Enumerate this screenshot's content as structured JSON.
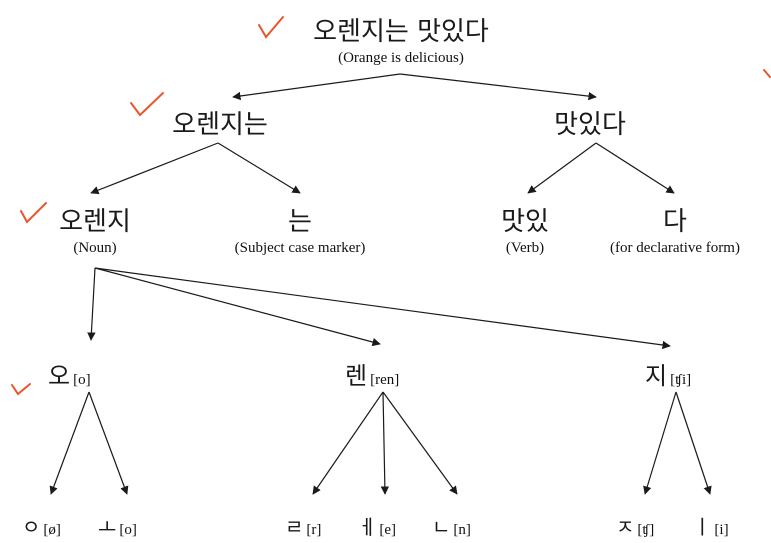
{
  "colors": {
    "ink": "#1a1a1a",
    "check": "#e8562a"
  },
  "tree": {
    "root": {
      "text": "오렌지는 맛있다",
      "gloss": "(Orange is delicious)"
    },
    "l1": {
      "left": {
        "text": "오렌지는"
      },
      "right": {
        "text": "맛있다"
      }
    },
    "l2": {
      "noun": {
        "text": "오렌지",
        "gloss": "(Noun)"
      },
      "marker": {
        "text": "는",
        "gloss": "(Subject case marker)"
      },
      "verb": {
        "text": "맛있",
        "gloss": "(Verb)"
      },
      "decl": {
        "text": "다",
        "gloss": "(for declarative form)"
      }
    },
    "syllables": [
      {
        "text": "오",
        "ipa": "[o]"
      },
      {
        "text": "렌",
        "ipa": "[ren]"
      },
      {
        "text": "지",
        "ipa": "[ʧi]"
      }
    ],
    "jamo": [
      {
        "text": "ㅇ",
        "ipa": "[ø]"
      },
      {
        "text": "ㅗ",
        "ipa": "[o]"
      },
      {
        "text": "ㄹ",
        "ipa": "[r]"
      },
      {
        "text": "ㅔ",
        "ipa": "[e]"
      },
      {
        "text": "ㄴ",
        "ipa": "[n]"
      },
      {
        "text": "ㅈ",
        "ipa": "[ʧ]"
      },
      {
        "text": "ㅣ",
        "ipa": "[i]"
      }
    ]
  }
}
